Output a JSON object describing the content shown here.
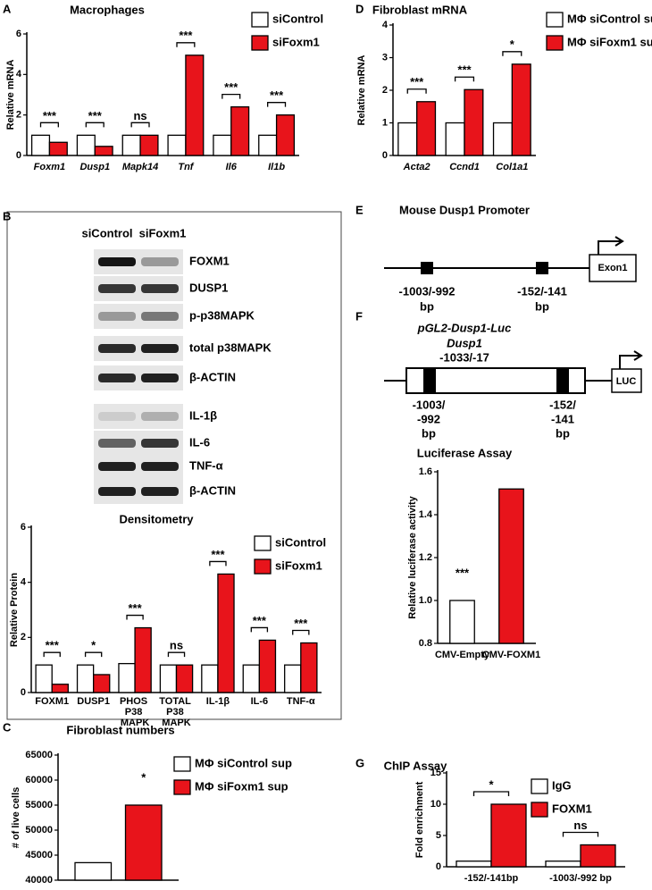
{
  "panel_labels": [
    "A",
    "B",
    "C",
    "D",
    "E",
    "F",
    "G"
  ],
  "blot": {
    "lanes": [
      "siControl",
      "siFoxm1"
    ],
    "rows": [
      "FOXM1",
      "DUSP1",
      "p-p38MAPK",
      "total p38MAPK",
      "β-ACTIN",
      "IL-1β",
      "IL-6",
      "TNF-α",
      "β-ACTIN"
    ]
  },
  "promoter_e": {
    "title": "Mouse Dusp1 Promoter",
    "sites": [
      [
        "-1003/-992",
        "bp"
      ],
      [
        "-152/-141",
        "bp"
      ]
    ],
    "exon": "Exon1"
  },
  "promoter_f": {
    "title": "pGL2-Dusp1-Luc",
    "gene": "Dusp1",
    "range": "-1033/-17",
    "sites": [
      [
        "-1003/",
        "-992",
        "bp"
      ],
      [
        "-152/",
        "-141",
        "bp"
      ]
    ],
    "reporter": "LUC"
  },
  "chart_data": [
    {
      "type": "bar",
      "title": "Macrophages",
      "y_label": "Relative mRNA",
      "categories": [
        "Foxm1",
        "Dusp1",
        "Mapk14",
        "Tnf",
        "Il6",
        "Il1b"
      ],
      "series": [
        {
          "name": "siControl",
          "color": "#ffffff",
          "values": [
            1,
            1,
            1,
            1,
            1,
            1
          ]
        },
        {
          "name": "siFoxm1",
          "color": "#e8141b",
          "values": [
            0.65,
            0.45,
            1.0,
            4.95,
            2.4,
            2.0
          ]
        }
      ],
      "ylim": [
        0,
        6
      ],
      "yticks": [
        0,
        2,
        4,
        6
      ],
      "annotations": [
        "***",
        "***",
        "ns",
        "***",
        "***",
        "***"
      ]
    },
    {
      "type": "bar",
      "title": "Fibroblast mRNA",
      "y_label": "Relative mRNA",
      "categories": [
        "Acta2",
        "Ccnd1",
        "Col1a1"
      ],
      "series": [
        {
          "name": "MΦ siControl sup",
          "color": "#ffffff",
          "values": [
            1,
            1,
            1
          ]
        },
        {
          "name": "MΦ siFoxm1 sup",
          "color": "#e8141b",
          "values": [
            1.65,
            2.02,
            2.8
          ]
        }
      ],
      "ylim": [
        0,
        4
      ],
      "yticks": [
        0,
        1,
        2,
        3,
        4
      ],
      "annotations": [
        "***",
        "***",
        "*"
      ]
    },
    {
      "type": "bar",
      "title": "Densitometry",
      "y_label": "Relative Protein",
      "categories": [
        "FOXM1",
        "DUSP1",
        "PHOS P38 MAPK",
        "TOTAL P38 MAPK",
        "IL-1β",
        "IL-6",
        "TNF-α"
      ],
      "series": [
        {
          "name": "siControl",
          "color": "#ffffff",
          "values": [
            1,
            1,
            1.05,
            1.0,
            1.0,
            1.0,
            1.0
          ]
        },
        {
          "name": "siFoxm1",
          "color": "#e8141b",
          "values": [
            0.3,
            0.65,
            2.35,
            1.0,
            4.3,
            1.9,
            1.8
          ]
        }
      ],
      "ylim": [
        0,
        6
      ],
      "yticks": [
        0,
        2,
        4,
        6
      ],
      "annotations": [
        "***",
        "*",
        "***",
        "ns",
        "***",
        "***",
        "***"
      ]
    },
    {
      "type": "bar",
      "title": "Fibroblast numbers",
      "y_label": "# of live cells",
      "series": [
        {
          "name": "MΦ siControl sup",
          "color": "#ffffff",
          "values": [
            43500
          ]
        },
        {
          "name": "MΦ siFoxm1 sup",
          "color": "#e8141b",
          "values": [
            55000
          ]
        }
      ],
      "ylim": [
        40000,
        65000
      ],
      "yticks": [
        40000,
        45000,
        50000,
        55000,
        60000,
        65000
      ],
      "annotations": [
        "*"
      ]
    },
    {
      "type": "bar",
      "title": "Luciferase Assay",
      "y_label": "Relative luciferase activity",
      "categories": [
        "CMV-Empty",
        "CMV-FOXM1"
      ],
      "values": [
        1.0,
        1.52
      ],
      "colors": [
        "#ffffff",
        "#e8141b"
      ],
      "ylim": [
        0.8,
        1.6
      ],
      "yticks": [
        0.8,
        {
          "value": 1,
          "label": "1.0"
        },
        1.2,
        1.4,
        1.6
      ],
      "annotations": [
        "***"
      ]
    },
    {
      "type": "bar",
      "title": "ChIP Assay",
      "y_label": "Fold enrichment",
      "categories": [
        "-152/-141bp",
        "-1003/-992 bp"
      ],
      "series": [
        {
          "name": "IgG",
          "color": "#ffffff",
          "values": [
            0.9,
            0.9
          ]
        },
        {
          "name": "FOXM1",
          "color": "#e8141b",
          "values": [
            10,
            3.5
          ]
        }
      ],
      "ylim": [
        0,
        15
      ],
      "yticks": [
        0,
        5,
        10,
        15
      ],
      "annotations": [
        "*",
        "ns"
      ]
    }
  ]
}
